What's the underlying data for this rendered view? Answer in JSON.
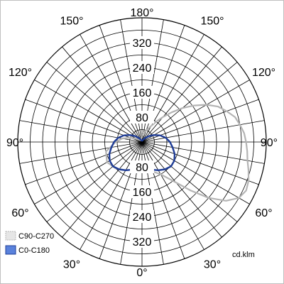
{
  "chart_data": {
    "type": "polar",
    "unit": "cd.klm",
    "radial_ticks": [
      80,
      160,
      240,
      320
    ],
    "radial_max": 400,
    "angle_labels": [
      {
        "text": "180°",
        "deg": 180
      },
      {
        "text": "150°",
        "deg": 150
      },
      {
        "text": "150°",
        "deg": -150
      },
      {
        "text": "120°",
        "deg": 120
      },
      {
        "text": "120°",
        "deg": -120
      },
      {
        "text": "90°",
        "deg": 90
      },
      {
        "text": "90°",
        "deg": -90
      },
      {
        "text": "60°",
        "deg": 60
      },
      {
        "text": "60°",
        "deg": -60
      },
      {
        "text": "30°",
        "deg": 30
      },
      {
        "text": "30°",
        "deg": -30
      },
      {
        "text": "0°",
        "deg": 0
      }
    ],
    "series": [
      {
        "name": "C90-C270",
        "color": "#b4b4b4",
        "points": [
          [
            -90,
            85
          ],
          [
            -75,
            120
          ],
          [
            -60,
            130
          ],
          [
            -45,
            120
          ],
          [
            -30,
            105
          ],
          [
            -15,
            92
          ],
          [
            0,
            90
          ],
          [
            15,
            95
          ],
          [
            30,
            120
          ],
          [
            40,
            170
          ],
          [
            45,
            220
          ],
          [
            50,
            280
          ],
          [
            55,
            330
          ],
          [
            60,
            360
          ],
          [
            65,
            370
          ],
          [
            70,
            365
          ],
          [
            75,
            355
          ],
          [
            80,
            345
          ],
          [
            85,
            340
          ],
          [
            90,
            335
          ],
          [
            95,
            330
          ],
          [
            100,
            320
          ],
          [
            105,
            310
          ],
          [
            110,
            290
          ],
          [
            115,
            270
          ],
          [
            120,
            240
          ],
          [
            125,
            205
          ],
          [
            130,
            170
          ],
          [
            135,
            135
          ],
          [
            140,
            105
          ],
          [
            145,
            80
          ],
          [
            150,
            60
          ],
          [
            160,
            40
          ],
          [
            170,
            28
          ],
          [
            180,
            20
          ],
          [
            -170,
            12
          ],
          [
            -160,
            8
          ],
          [
            -150,
            6
          ],
          [
            -135,
            8
          ],
          [
            -120,
            20
          ],
          [
            -110,
            40
          ],
          [
            -100,
            65
          ]
        ]
      },
      {
        "name": "C0-C180",
        "color": "#1e3c96",
        "points": [
          [
            0,
            90
          ],
          [
            10,
            90
          ],
          [
            20,
            95
          ],
          [
            30,
            105
          ],
          [
            40,
            115
          ],
          [
            50,
            122
          ],
          [
            60,
            120
          ],
          [
            70,
            112
          ],
          [
            80,
            100
          ],
          [
            90,
            90
          ],
          [
            100,
            78
          ],
          [
            110,
            62
          ],
          [
            120,
            45
          ],
          [
            130,
            30
          ],
          [
            140,
            18
          ],
          [
            150,
            10
          ],
          [
            165,
            5
          ],
          [
            180,
            4
          ],
          [
            -165,
            5
          ],
          [
            -150,
            10
          ],
          [
            -140,
            18
          ],
          [
            -130,
            30
          ],
          [
            -120,
            45
          ],
          [
            -110,
            62
          ],
          [
            -100,
            78
          ],
          [
            -90,
            90
          ],
          [
            -80,
            100
          ],
          [
            -70,
            112
          ],
          [
            -60,
            120
          ],
          [
            -50,
            122
          ],
          [
            -40,
            115
          ],
          [
            -30,
            105
          ],
          [
            -20,
            95
          ],
          [
            -10,
            90
          ]
        ]
      }
    ],
    "legend": {
      "placement": "bottom-left",
      "items": [
        {
          "label": "C90-C270",
          "fill": "#e6e6e6",
          "border": "#b4b4b4",
          "dashed": true
        },
        {
          "label": "C0-C180",
          "fill": "#5a82dc",
          "border": "#1e3c96",
          "dashed": false
        }
      ]
    },
    "grid": true
  }
}
